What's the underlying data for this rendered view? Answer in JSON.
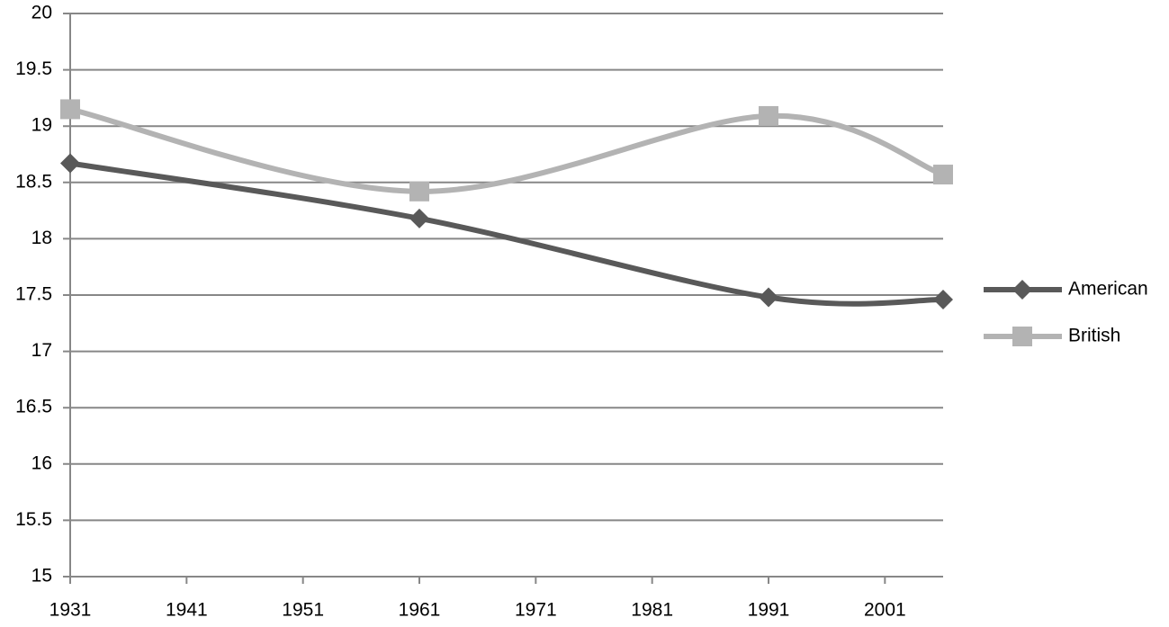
{
  "chart_data": {
    "type": "line",
    "x": [
      1931,
      1961,
      1991,
      2006
    ],
    "series": [
      {
        "name": "American",
        "color": "#595959",
        "marker": "diamond",
        "values": [
          18.67,
          18.18,
          17.48,
          17.46
        ]
      },
      {
        "name": "British",
        "color": "#b3b3b3",
        "marker": "square",
        "values": [
          19.15,
          18.42,
          19.09,
          18.57
        ]
      }
    ],
    "xlim": [
      1931,
      2006
    ],
    "xticks": [
      1931,
      1941,
      1951,
      1961,
      1971,
      1981,
      1991,
      2001
    ],
    "ylim": [
      15,
      20
    ],
    "yticks": [
      15,
      15.5,
      16,
      16.5,
      17,
      17.5,
      18,
      18.5,
      19,
      19.5,
      20
    ],
    "grid": true,
    "smooth": true,
    "legend": "right"
  }
}
